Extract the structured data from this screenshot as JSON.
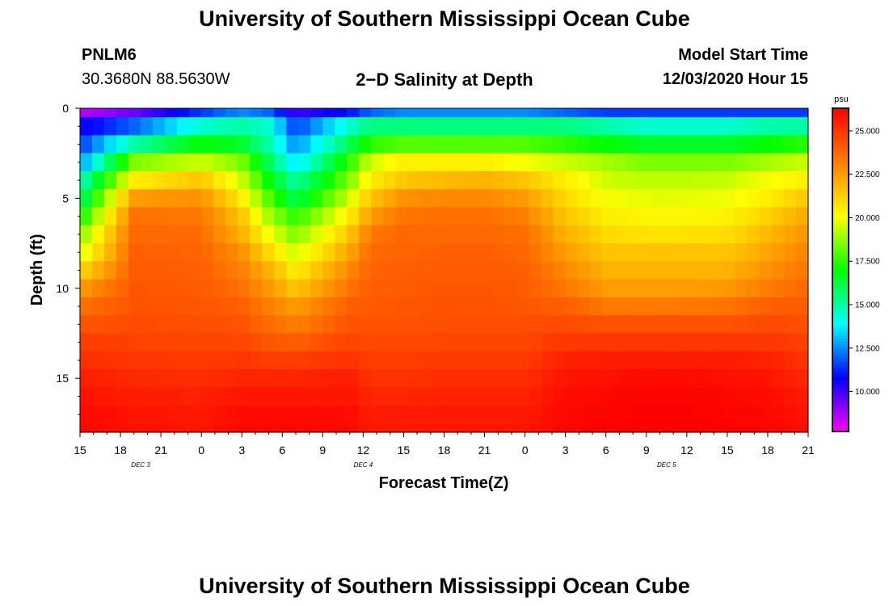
{
  "header": {
    "title_top": "University of Southern Mississippi Ocean Cube",
    "title_bottom": "University of Southern Mississippi Ocean Cube",
    "station": "PNLM6",
    "coords": "30.3680N 88.5630W",
    "plot_title": "2−D Salinity at Depth",
    "start_label": "Model Start Time",
    "start_value": "12/03/2020 Hour 15"
  },
  "chart_data": {
    "type": "heatmap",
    "title": "2−D Salinity at Depth",
    "xlabel": "Forecast Time(Z)",
    "ylabel": "Depth (ft)",
    "x_hours": [
      0,
      3,
      6,
      9,
      12,
      15,
      18,
      21,
      24,
      27,
      30,
      33,
      36,
      39,
      42,
      45,
      48,
      51,
      54
    ],
    "x_tick_labels": [
      "15",
      "18",
      "21",
      "0",
      "3",
      "6",
      "9",
      "12",
      "15",
      "18",
      "21",
      "0",
      "3",
      "6",
      "9",
      "12",
      "15",
      "18",
      "21"
    ],
    "x_range": [
      0,
      54
    ],
    "date_labels": [
      {
        "text": "DEC 3",
        "hour": 4.5
      },
      {
        "text": "DEC 4",
        "hour": 21
      },
      {
        "text": "DEC 5",
        "hour": 43.5
      }
    ],
    "y_ticks": [
      0,
      5,
      10,
      15
    ],
    "y_tick_labels": [
      "0",
      "5",
      "10",
      "15"
    ],
    "y_range": [
      0,
      18
    ],
    "colorbar": {
      "unit": "psu",
      "min": 7.7,
      "max": 26.3,
      "ticks": [
        10.0,
        12.5,
        15.0,
        17.5,
        20.0,
        22.5,
        25.0
      ],
      "tick_labels": [
        "10.000",
        "12.500",
        "15.000",
        "17.500",
        "20.000",
        "22.500",
        "25.000"
      ],
      "colors": [
        "#ff00ff",
        "#8000ff",
        "#0000ff",
        "#0080ff",
        "#00ffff",
        "#00ff80",
        "#00ff00",
        "#80ff00",
        "#ffff00",
        "#ffc000",
        "#ff8000",
        "#ff4000",
        "#ff0000"
      ]
    },
    "levels_ft": [
      0,
      1,
      2,
      3,
      4,
      5,
      6,
      7,
      8,
      9,
      10,
      11,
      12,
      13,
      14,
      15,
      16,
      17,
      18
    ],
    "profile_hours": [
      0,
      4,
      9,
      12,
      14,
      16,
      20,
      21.5,
      24,
      27,
      30,
      33,
      36,
      39,
      42,
      45,
      48,
      51,
      54
    ],
    "profiles": [
      [
        8.5,
        10.5,
        11.5,
        12.5,
        14.5,
        15.5,
        17.0,
        18.5,
        19.5,
        21.0,
        22.5,
        23.5,
        24.2,
        24.8,
        25.2,
        25.6,
        25.9,
        26.1,
        26.2
      ],
      [
        9.5,
        12.0,
        15.0,
        18.5,
        20.5,
        22.5,
        23.5,
        23.8,
        24.0,
        24.1,
        24.2,
        24.3,
        24.5,
        24.7,
        25.0,
        25.3,
        25.6,
        25.8,
        25.9
      ],
      [
        11.5,
        14.5,
        17.0,
        19.5,
        21.5,
        22.8,
        23.4,
        23.7,
        23.9,
        24.0,
        24.1,
        24.2,
        24.4,
        24.6,
        24.9,
        25.2,
        25.5,
        25.7,
        25.8
      ],
      [
        12.5,
        15.0,
        16.5,
        18.5,
        19.5,
        20.5,
        21.5,
        22.0,
        22.8,
        23.2,
        23.6,
        24.0,
        24.3,
        24.6,
        25.0,
        25.4,
        25.8,
        26.0,
        26.1
      ],
      [
        12.0,
        14.5,
        15.0,
        16.0,
        17.0,
        18.0,
        19.0,
        20.0,
        21.0,
        22.0,
        22.6,
        23.2,
        23.7,
        24.2,
        24.8,
        25.4,
        25.8,
        26.0,
        26.1
      ],
      [
        10.0,
        11.5,
        12.5,
        13.5,
        15.0,
        16.0,
        17.5,
        18.5,
        19.5,
        20.5,
        21.5,
        22.5,
        23.2,
        24.0,
        24.8,
        25.4,
        25.8,
        26.0,
        26.1
      ],
      [
        11.0,
        14.5,
        16.0,
        17.5,
        18.5,
        19.5,
        20.5,
        21.5,
        22.3,
        23.0,
        23.5,
        24.0,
        24.3,
        24.7,
        25.1,
        25.6,
        25.8,
        26.0,
        26.1
      ],
      [
        12.0,
        15.5,
        17.5,
        19.5,
        20.5,
        21.5,
        22.5,
        23.3,
        23.7,
        23.9,
        24.0,
        24.1,
        24.3,
        24.5,
        24.8,
        25.1,
        25.4,
        25.6,
        25.7
      ],
      [
        12.5,
        15.5,
        18.0,
        20.5,
        21.5,
        22.8,
        23.5,
        23.8,
        23.9,
        24.0,
        24.1,
        24.2,
        24.3,
        24.5,
        24.8,
        25.1,
        25.4,
        25.6,
        25.7
      ],
      [
        12.5,
        15.5,
        18.0,
        20.5,
        21.8,
        23.0,
        23.6,
        23.8,
        24.0,
        24.1,
        24.2,
        24.3,
        24.4,
        24.6,
        24.9,
        25.2,
        25.5,
        25.7,
        25.8
      ],
      [
        12.5,
        15.5,
        18.0,
        20.5,
        22.0,
        23.0,
        23.6,
        23.8,
        24.0,
        24.1,
        24.2,
        24.3,
        24.4,
        24.6,
        24.9,
        25.2,
        25.5,
        25.7,
        25.8
      ],
      [
        12.5,
        15.5,
        18.0,
        20.0,
        21.5,
        22.5,
        23.2,
        23.6,
        23.8,
        24.0,
        24.1,
        24.2,
        24.4,
        24.6,
        24.9,
        25.2,
        25.5,
        25.7,
        25.8
      ],
      [
        12.0,
        15.5,
        17.5,
        19.5,
        20.5,
        21.0,
        21.5,
        22.0,
        22.5,
        23.0,
        23.4,
        24.0,
        24.5,
        25.0,
        25.5,
        25.8,
        26.0,
        26.1,
        26.2
      ],
      [
        11.5,
        15.0,
        17.0,
        19.0,
        19.5,
        20.0,
        20.5,
        21.0,
        21.5,
        22.0,
        22.5,
        23.4,
        24.3,
        25.0,
        25.6,
        25.9,
        26.1,
        26.2,
        26.3
      ],
      [
        11.5,
        14.5,
        16.5,
        18.5,
        19.3,
        19.8,
        20.3,
        20.8,
        21.5,
        22.0,
        22.5,
        23.4,
        24.3,
        25.0,
        25.6,
        26.0,
        26.2,
        26.3,
        26.3
      ],
      [
        11.5,
        14.5,
        16.5,
        18.5,
        19.3,
        19.8,
        20.3,
        20.8,
        21.5,
        22.0,
        22.5,
        23.4,
        24.3,
        25.0,
        25.6,
        26.0,
        26.2,
        26.3,
        26.3
      ],
      [
        11.5,
        14.5,
        16.5,
        18.5,
        19.4,
        19.9,
        20.4,
        20.9,
        21.5,
        22.0,
        22.6,
        23.5,
        24.3,
        25.0,
        25.6,
        25.9,
        26.1,
        26.2,
        26.3
      ],
      [
        11.5,
        15.0,
        17.0,
        19.0,
        20.0,
        20.5,
        21.2,
        21.8,
        22.3,
        22.8,
        23.3,
        24.0,
        24.5,
        25.0,
        25.5,
        25.8,
        26.0,
        26.1,
        26.2
      ],
      [
        11.5,
        15.0,
        17.5,
        19.5,
        20.5,
        21.5,
        22.3,
        22.8,
        23.2,
        23.5,
        23.8,
        24.1,
        24.4,
        24.7,
        25.0,
        25.3,
        25.6,
        25.8,
        25.9
      ]
    ]
  }
}
